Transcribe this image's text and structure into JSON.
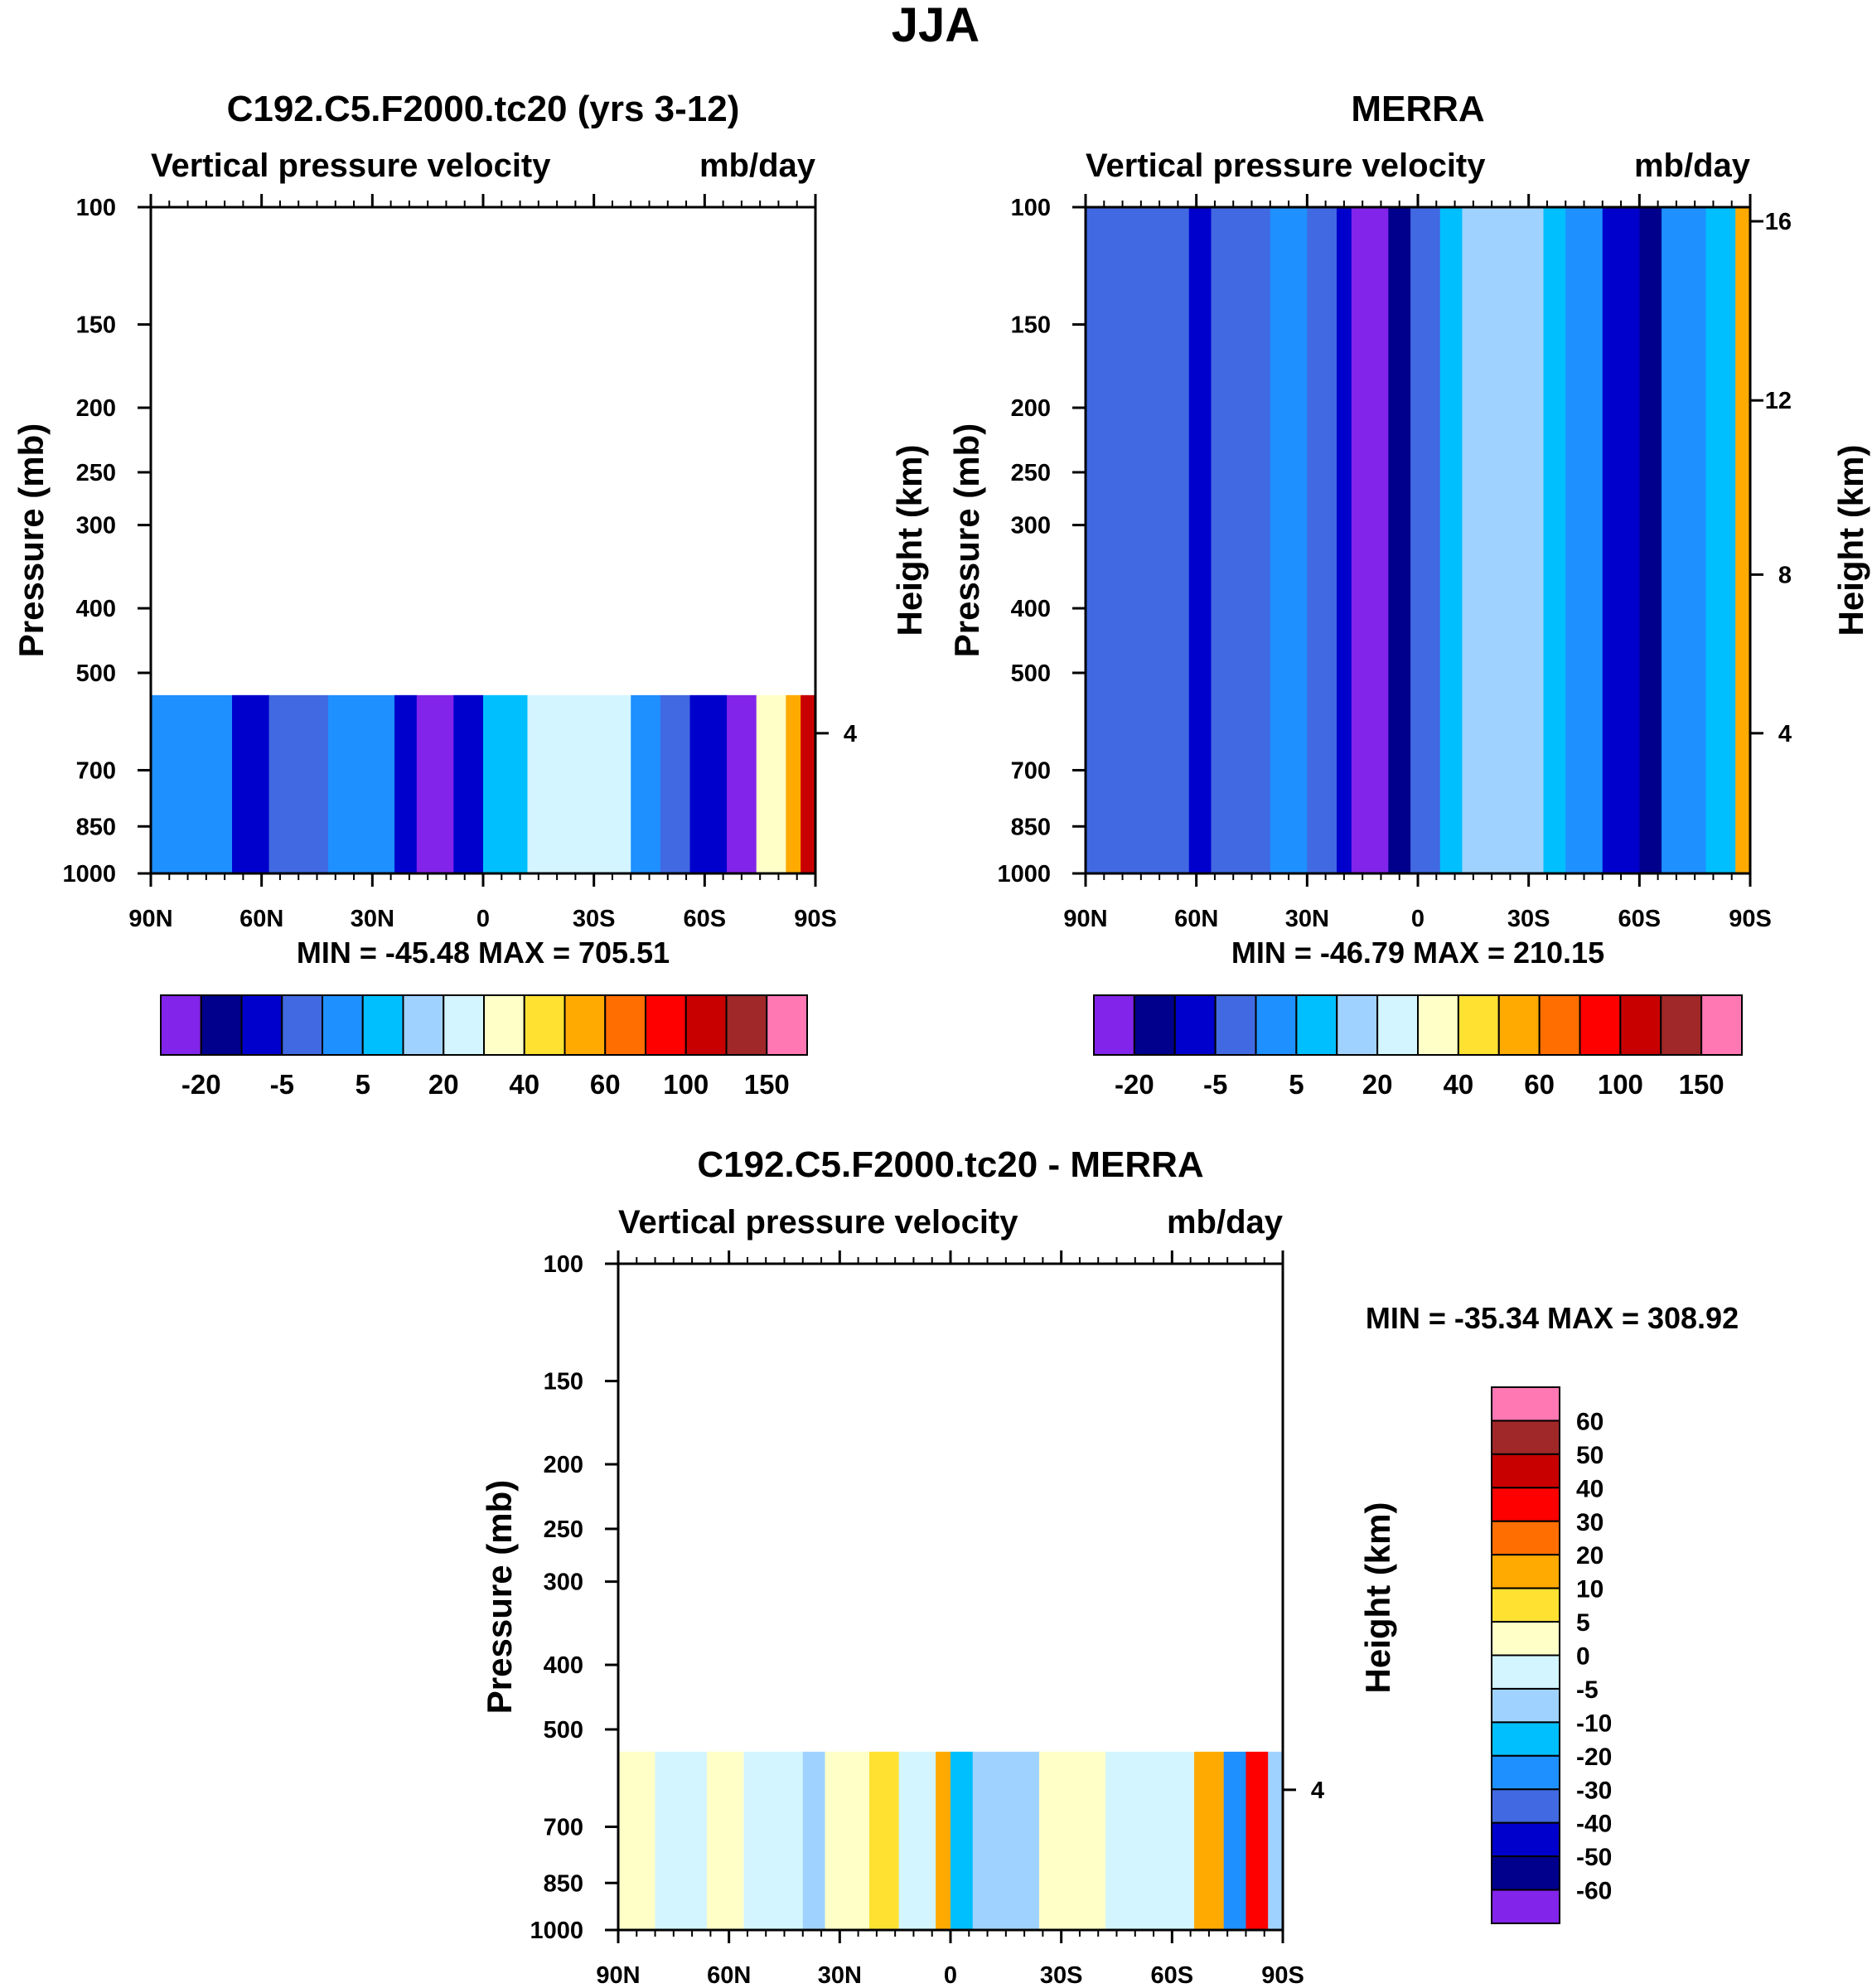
{
  "figure_title": "JJA",
  "chart_data": [
    {
      "type": "heatmap",
      "panel": "model",
      "title": "C192.C5.F2000.tc20 (yrs 3-12)",
      "variable_label": "Vertical pressure velocity",
      "units_label": "mb/day",
      "xlabel": "",
      "ylabel": "Pressure (mb)",
      "right_axis_label": "Height (km)",
      "x_ticks": [
        "90N",
        "60N",
        "30N",
        "0",
        "30S",
        "60S",
        "90S"
      ],
      "y_ticks": [
        "100",
        "150",
        "200",
        "250",
        "300",
        "400",
        "500",
        "700",
        "850",
        "1000"
      ],
      "right_ticks": [
        "4"
      ],
      "ylim": [
        1000,
        100
      ],
      "data_top_pressure": 540,
      "min_max_label": "MIN = -45.48  MAX = 705.51",
      "colorbar_labels": [
        "-20",
        "-5",
        "5",
        "20",
        "40",
        "60",
        "100",
        "150"
      ],
      "colorbar_colors": [
        "#8224ea",
        "#00008c",
        "#0000cd",
        "#4169e1",
        "#1e90ff",
        "#00bfff",
        "#a0d2ff",
        "#d2f5ff",
        "#ffffc8",
        "#ffe132",
        "#ffaa00",
        "#ff6e00",
        "#ff0000",
        "#c80000",
        "#a02828",
        "#ff78b4"
      ],
      "bands": [
        {
          "lat_from": 90,
          "lat_to": 68,
          "color": "#1e90ff"
        },
        {
          "lat_from": 68,
          "lat_to": 58,
          "color": "#0000cd"
        },
        {
          "lat_from": 58,
          "lat_to": 42,
          "color": "#4169e1"
        },
        {
          "lat_from": 42,
          "lat_to": 24,
          "color": "#1e90ff"
        },
        {
          "lat_from": 24,
          "lat_to": 18,
          "color": "#0000cd"
        },
        {
          "lat_from": 18,
          "lat_to": 8,
          "color": "#8224ea"
        },
        {
          "lat_from": 8,
          "lat_to": 0,
          "color": "#0000cd"
        },
        {
          "lat_from": 0,
          "lat_to": -12,
          "color": "#00bfff"
        },
        {
          "lat_from": -12,
          "lat_to": -40,
          "color": "#d2f5ff"
        },
        {
          "lat_from": -40,
          "lat_to": -48,
          "color": "#1e90ff"
        },
        {
          "lat_from": -48,
          "lat_to": -56,
          "color": "#4169e1"
        },
        {
          "lat_from": -56,
          "lat_to": -66,
          "color": "#0000cd"
        },
        {
          "lat_from": -66,
          "lat_to": -74,
          "color": "#8224ea"
        },
        {
          "lat_from": -74,
          "lat_to": -82,
          "color": "#ffffc8"
        },
        {
          "lat_from": -82,
          "lat_to": -86,
          "color": "#ffaa00"
        },
        {
          "lat_from": -86,
          "lat_to": -90,
          "color": "#c80000"
        }
      ]
    },
    {
      "type": "heatmap",
      "panel": "obs",
      "title": "MERRA",
      "variable_label": "Vertical pressure velocity",
      "units_label": "mb/day",
      "xlabel": "",
      "ylabel": "Pressure (mb)",
      "right_axis_label": "Height (km)",
      "x_ticks": [
        "90N",
        "60N",
        "30N",
        "0",
        "30S",
        "60S",
        "90S"
      ],
      "y_ticks": [
        "100",
        "150",
        "200",
        "250",
        "300",
        "400",
        "500",
        "700",
        "850",
        "1000"
      ],
      "right_ticks": [
        "16",
        "12",
        "8",
        "4"
      ],
      "ylim": [
        1000,
        100
      ],
      "data_top_pressure": 100,
      "min_max_label": "MIN = -46.79  MAX = 210.15",
      "colorbar_labels": [
        "-20",
        "-5",
        "5",
        "20",
        "40",
        "60",
        "100",
        "150"
      ],
      "colorbar_colors": [
        "#8224ea",
        "#00008c",
        "#0000cd",
        "#4169e1",
        "#1e90ff",
        "#00bfff",
        "#a0d2ff",
        "#d2f5ff",
        "#ffffc8",
        "#ffe132",
        "#ffaa00",
        "#ff6e00",
        "#ff0000",
        "#c80000",
        "#a02828",
        "#ff78b4"
      ],
      "bands": [
        {
          "lat_from": 90,
          "lat_to": 72,
          "color": "#4169e1"
        },
        {
          "lat_from": 72,
          "lat_to": 62,
          "color": "#4169e1"
        },
        {
          "lat_from": 62,
          "lat_to": 56,
          "color": "#0000cd"
        },
        {
          "lat_from": 56,
          "lat_to": 40,
          "color": "#4169e1"
        },
        {
          "lat_from": 40,
          "lat_to": 30,
          "color": "#1e90ff"
        },
        {
          "lat_from": 30,
          "lat_to": 22,
          "color": "#4169e1"
        },
        {
          "lat_from": 22,
          "lat_to": 18,
          "color": "#0000cd"
        },
        {
          "lat_from": 18,
          "lat_to": 8,
          "color": "#8224ea"
        },
        {
          "lat_from": 8,
          "lat_to": 2,
          "color": "#00008c"
        },
        {
          "lat_from": 2,
          "lat_to": -6,
          "color": "#4169e1"
        },
        {
          "lat_from": -6,
          "lat_to": -12,
          "color": "#00bfff"
        },
        {
          "lat_from": -12,
          "lat_to": -34,
          "color": "#a0d2ff"
        },
        {
          "lat_from": -34,
          "lat_to": -40,
          "color": "#00bfff"
        },
        {
          "lat_from": -40,
          "lat_to": -50,
          "color": "#1e90ff"
        },
        {
          "lat_from": -50,
          "lat_to": -60,
          "color": "#0000cd"
        },
        {
          "lat_from": -60,
          "lat_to": -66,
          "color": "#00008c"
        },
        {
          "lat_from": -66,
          "lat_to": -78,
          "color": "#1e90ff"
        },
        {
          "lat_from": -78,
          "lat_to": -86,
          "color": "#00bfff"
        },
        {
          "lat_from": -86,
          "lat_to": -90,
          "color": "#ffaa00"
        }
      ]
    },
    {
      "type": "heatmap",
      "panel": "difference",
      "title": "C192.C5.F2000.tc20 - MERRA",
      "variable_label": "Vertical pressure velocity",
      "units_label": "mb/day",
      "xlabel": "",
      "ylabel": "Pressure (mb)",
      "right_axis_label": "Height (km)",
      "x_ticks": [
        "90N",
        "60N",
        "30N",
        "0",
        "30S",
        "60S",
        "90S"
      ],
      "y_ticks": [
        "100",
        "150",
        "200",
        "250",
        "300",
        "400",
        "500",
        "700",
        "850",
        "1000"
      ],
      "right_ticks": [
        "4"
      ],
      "ylim": [
        1000,
        100
      ],
      "data_top_pressure": 540,
      "min_max_label": "MIN = -35.34  MAX = 308.92",
      "colorbar_labels": [
        "60",
        "50",
        "40",
        "30",
        "20",
        "10",
        "5",
        "0",
        "-5",
        "-10",
        "-20",
        "-30",
        "-40",
        "-50",
        "-60"
      ],
      "colorbar_colors": [
        "#ff78b4",
        "#a02828",
        "#c80000",
        "#ff0000",
        "#ff6e00",
        "#ffaa00",
        "#ffe132",
        "#ffffc8",
        "#d2f5ff",
        "#a0d2ff",
        "#00bfff",
        "#1e90ff",
        "#4169e1",
        "#0000cd",
        "#00008c",
        "#8224ea"
      ],
      "bands": [
        {
          "lat_from": 90,
          "lat_to": 80,
          "color": "#ffffc8"
        },
        {
          "lat_from": 80,
          "lat_to": 66,
          "color": "#d2f5ff"
        },
        {
          "lat_from": 66,
          "lat_to": 56,
          "color": "#ffffc8"
        },
        {
          "lat_from": 56,
          "lat_to": 40,
          "color": "#d2f5ff"
        },
        {
          "lat_from": 40,
          "lat_to": 34,
          "color": "#a0d2ff"
        },
        {
          "lat_from": 34,
          "lat_to": 22,
          "color": "#ffffc8"
        },
        {
          "lat_from": 22,
          "lat_to": 14,
          "color": "#ffe132"
        },
        {
          "lat_from": 14,
          "lat_to": 4,
          "color": "#d2f5ff"
        },
        {
          "lat_from": 4,
          "lat_to": 0,
          "color": "#ffaa00"
        },
        {
          "lat_from": 0,
          "lat_to": -6,
          "color": "#00bfff"
        },
        {
          "lat_from": -6,
          "lat_to": -24,
          "color": "#a0d2ff"
        },
        {
          "lat_from": -24,
          "lat_to": -42,
          "color": "#ffffc8"
        },
        {
          "lat_from": -42,
          "lat_to": -66,
          "color": "#d2f5ff"
        },
        {
          "lat_from": -66,
          "lat_to": -74,
          "color": "#ffaa00"
        },
        {
          "lat_from": -74,
          "lat_to": -80,
          "color": "#1e90ff"
        },
        {
          "lat_from": -80,
          "lat_to": -86,
          "color": "#ff0000"
        },
        {
          "lat_from": -86,
          "lat_to": -90,
          "color": "#a0d2ff"
        }
      ]
    }
  ]
}
